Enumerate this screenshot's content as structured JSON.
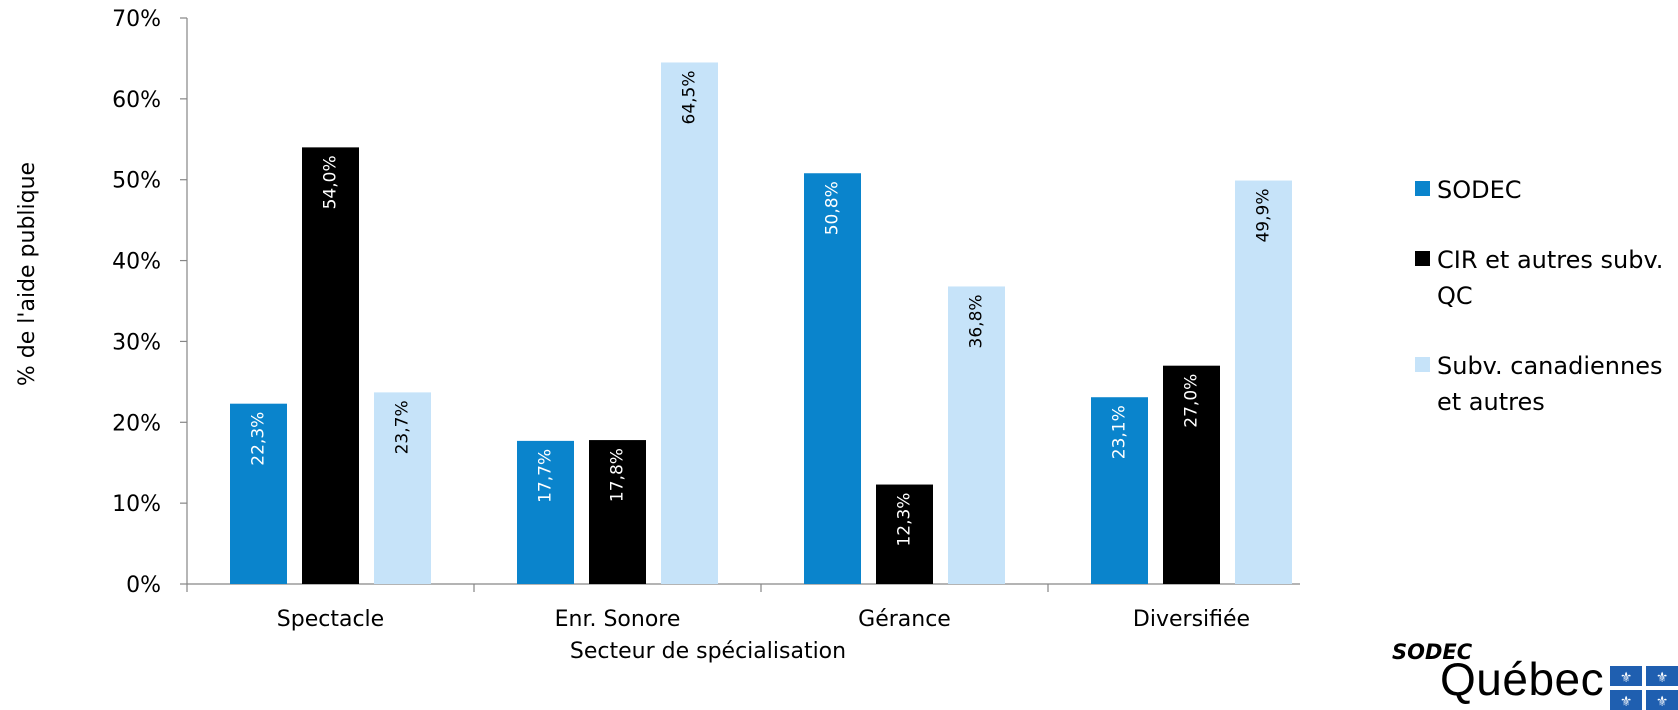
{
  "chart_data": {
    "type": "bar",
    "categories": [
      "Spectacle",
      "Enr. Sonore",
      "Gérance",
      "Diversifiée"
    ],
    "series": [
      {
        "name": "SODEC",
        "color": "#0a84cc",
        "label_color": "#ffffff",
        "values": [
          22.3,
          17.7,
          50.8,
          23.1
        ],
        "labels": [
          "22,3%",
          "17,7%",
          "50,8%",
          "23,1%"
        ]
      },
      {
        "name": "CIR et autres subv. QC",
        "color": "#000000",
        "label_color": "#ffffff",
        "values": [
          54.0,
          17.8,
          12.3,
          27.0
        ],
        "labels": [
          "54,0%",
          "17,8%",
          "12,3%",
          "27,0%"
        ]
      },
      {
        "name": "Subv. canadiennes et autres",
        "color": "#c6e3f9",
        "label_color": "#000000",
        "values": [
          23.7,
          64.5,
          36.8,
          49.9
        ],
        "labels": [
          "23,7%",
          "64,5%",
          "36,8%",
          "49,9%"
        ]
      }
    ],
    "ylim": [
      0,
      70
    ],
    "yticks": [
      0,
      10,
      20,
      30,
      40,
      50,
      60,
      70
    ],
    "ytick_labels": [
      "0%",
      "10%",
      "20%",
      "30%",
      "40%",
      "50%",
      "60%",
      "70%"
    ],
    "xlabel": "Secteur de spécialisation",
    "ylabel": "% de l'aide publique",
    "grid": false,
    "legend_position": "right"
  },
  "legend": {
    "items": [
      {
        "label_lines": [
          "SODEC"
        ]
      },
      {
        "label_lines": [
          "CIR et autres subv.",
          "QC"
        ]
      },
      {
        "label_lines": [
          "Subv. canadiennes",
          "et autres"
        ]
      }
    ]
  },
  "logo": {
    "brand_text": "SODEC",
    "wordmark": "Québec",
    "flag_color": "#1f5fb0",
    "flag_icon": "quebec-flag-icon"
  }
}
